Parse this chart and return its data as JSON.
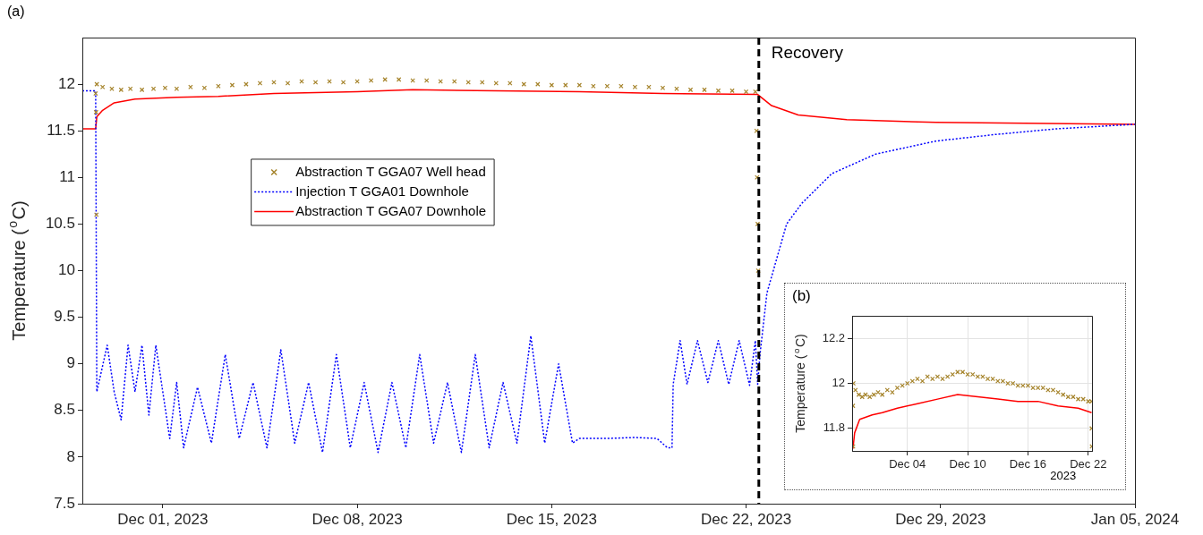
{
  "chart_data": [
    {
      "type": "line",
      "ylabel": "Temperature ($^{o}$C)",
      "legend": "top left",
      "grid": false,
      "marker": "none",
      "xlim": [
        "2023-11-28T02:30",
        "2024-01-05T00:00"
      ],
      "xticks": [
        {
          "value": "2023-12-01",
          "label": "Dec 01, 2023"
        },
        {
          "value": "2023-12-08",
          "label": "Dec 08, 2023"
        },
        {
          "value": "2023-12-15",
          "label": "Dec 15, 2023"
        },
        {
          "value": "2023-12-22",
          "label": "Dec 22, 2023"
        },
        {
          "value": "2023-12-29",
          "label": "Dec 29, 2023"
        },
        {
          "value": "2024-01-05",
          "label": "Jan 05, 2024"
        }
      ],
      "ylim": [
        7.5,
        12.5
      ],
      "yticks": [
        7.5,
        8,
        8.5,
        9,
        9.5,
        10,
        10.5,
        11,
        11.5,
        12
      ],
      "ref_lines": [
        {
          "axis": "x",
          "value": "2023-12-22T11:00",
          "label": "Recovery",
          "color": "#000000",
          "line_style": "dashed"
        }
      ],
      "annotations": [
        "(a)"
      ],
      "series": [
        {
          "name": "Abstraction T GGA07 Well head",
          "type": "scatter",
          "marker": "cross",
          "color": "#a5832a",
          "x": [
            "2023-11-28T14:00",
            "2023-11-28T14:20",
            "2023-11-28T14:40",
            "2023-11-28T15:00",
            "2023-11-28T20:00",
            "2023-11-29T04:00",
            "2023-11-29T12:00",
            "2023-11-29T20:00",
            "2023-11-30T06:00",
            "2023-11-30T16:00",
            "2023-12-01T02:00",
            "2023-12-01T12:00",
            "2023-12-02T00:00",
            "2023-12-02T12:00",
            "2023-12-03T00:00",
            "2023-12-03T12:00",
            "2023-12-04T00:00",
            "2023-12-04T12:00",
            "2023-12-05T00:00",
            "2023-12-05T12:00",
            "2023-12-06T00:00",
            "2023-12-06T12:00",
            "2023-12-07T00:00",
            "2023-12-07T12:00",
            "2023-12-08T00:00",
            "2023-12-08T12:00",
            "2023-12-09T00:00",
            "2023-12-09T12:00",
            "2023-12-10T00:00",
            "2023-12-10T12:00",
            "2023-12-11T00:00",
            "2023-12-11T12:00",
            "2023-12-12T00:00",
            "2023-12-12T12:00",
            "2023-12-13T00:00",
            "2023-12-13T12:00",
            "2023-12-14T00:00",
            "2023-12-14T12:00",
            "2023-12-15T00:00",
            "2023-12-15T12:00",
            "2023-12-16T00:00",
            "2023-12-16T12:00",
            "2023-12-17T00:00",
            "2023-12-17T12:00",
            "2023-12-18T00:00",
            "2023-12-18T12:00",
            "2023-12-19T00:00",
            "2023-12-19T12:00",
            "2023-12-20T00:00",
            "2023-12-20T12:00",
            "2023-12-21T00:00",
            "2023-12-21T12:00",
            "2023-12-22T00:00",
            "2023-12-22T08:00",
            "2023-12-22T09:00",
            "2023-12-22T09:30",
            "2023-12-22T10:00",
            "2023-12-22T10:30"
          ],
          "values": [
            11.9,
            11.7,
            10.6,
            12.0,
            11.97,
            11.95,
            11.94,
            11.95,
            11.94,
            11.95,
            11.96,
            11.95,
            11.97,
            11.96,
            11.98,
            11.99,
            12.0,
            12.01,
            12.02,
            12.01,
            12.03,
            12.02,
            12.03,
            12.02,
            12.03,
            12.04,
            12.05,
            12.05,
            12.04,
            12.04,
            12.03,
            12.03,
            12.02,
            12.02,
            12.01,
            12.01,
            12.0,
            12.0,
            11.99,
            11.99,
            11.99,
            11.98,
            11.98,
            11.98,
            11.97,
            11.97,
            11.96,
            11.95,
            11.94,
            11.94,
            11.93,
            11.93,
            11.92,
            11.92,
            11.5,
            11.0,
            10.5,
            10.0
          ]
        },
        {
          "name": "Injection T GGA01 Downhole",
          "type": "line",
          "line_style": "dotted",
          "color": "#0000ff",
          "x": [
            "2023-11-28T02:30",
            "2023-11-28T14:00",
            "2023-11-28T15:00",
            "2023-11-29T00:00",
            "2023-11-29T06:00",
            "2023-11-29T12:00",
            "2023-11-29T18:00",
            "2023-11-30T00:00",
            "2023-11-30T06:00",
            "2023-11-30T12:00",
            "2023-11-30T18:00",
            "2023-12-01T00:00",
            "2023-12-01T06:00",
            "2023-12-01T12:00",
            "2023-12-01T18:00",
            "2023-12-02T06:00",
            "2023-12-02T18:00",
            "2023-12-03T06:00",
            "2023-12-03T18:00",
            "2023-12-04T06:00",
            "2023-12-04T18:00",
            "2023-12-05T06:00",
            "2023-12-05T18:00",
            "2023-12-06T06:00",
            "2023-12-06T18:00",
            "2023-12-07T06:00",
            "2023-12-07T18:00",
            "2023-12-08T06:00",
            "2023-12-08T18:00",
            "2023-12-09T06:00",
            "2023-12-09T18:00",
            "2023-12-10T06:00",
            "2023-12-10T18:00",
            "2023-12-11T06:00",
            "2023-12-11T18:00",
            "2023-12-12T06:00",
            "2023-12-12T18:00",
            "2023-12-13T06:00",
            "2023-12-13T18:00",
            "2023-12-14T06:00",
            "2023-12-14T18:00",
            "2023-12-15T06:00",
            "2023-12-15T18:00",
            "2023-12-16T00:00",
            "2023-12-17T00:00",
            "2023-12-18T00:00",
            "2023-12-18T19:00",
            "2023-12-19T04:00",
            "2023-12-19T08:00",
            "2023-12-19T09:00",
            "2023-12-19T15:00",
            "2023-12-19T21:00",
            "2023-12-20T06:00",
            "2023-12-20T15:00",
            "2023-12-21T00:00",
            "2023-12-21T09:00",
            "2023-12-21T18:00",
            "2023-12-22T03:00",
            "2023-12-22T08:00",
            "2023-12-22T10:00",
            "2023-12-22T12:00",
            "2023-12-22T18:00",
            "2023-12-23T11:00",
            "2023-12-24T00:00",
            "2023-12-25T02:00",
            "2023-12-26T16:00",
            "2023-12-28T20:00",
            "2023-12-30T23:00",
            "2024-01-02T03:00",
            "2024-01-05T00:00"
          ],
          "values": [
            11.93,
            11.93,
            8.7,
            9.2,
            8.7,
            8.4,
            9.2,
            8.7,
            9.2,
            8.45,
            9.2,
            8.7,
            8.2,
            8.8,
            8.1,
            8.75,
            8.15,
            9.1,
            8.2,
            8.8,
            8.1,
            9.15,
            8.15,
            8.8,
            8.05,
            9.1,
            8.1,
            8.8,
            8.05,
            8.8,
            8.1,
            9.1,
            8.15,
            8.8,
            8.05,
            9.1,
            8.1,
            8.8,
            8.15,
            9.3,
            8.15,
            9.0,
            8.15,
            8.2,
            8.2,
            8.21,
            8.2,
            8.1,
            8.1,
            8.78,
            9.25,
            8.78,
            9.25,
            8.8,
            9.25,
            8.78,
            9.25,
            8.77,
            9.25,
            8.78,
            9.1,
            9.76,
            10.5,
            10.72,
            11.04,
            11.25,
            11.39,
            11.46,
            11.52,
            11.57
          ]
        },
        {
          "name": "Abstraction T GGA07 Downhole",
          "type": "line",
          "line_style": "solid",
          "color": "#ff0000",
          "x": [
            "2023-11-28T02:30",
            "2023-11-28T14:00",
            "2023-11-28T15:00",
            "2023-11-28T20:00",
            "2023-11-29T06:00",
            "2023-11-30T00:00",
            "2023-12-01T12:00",
            "2023-12-03T00:00",
            "2023-12-05T00:00",
            "2023-12-08T00:00",
            "2023-12-10T00:00",
            "2023-12-13T00:00",
            "2023-12-16T00:00",
            "2023-12-19T00:00",
            "2023-12-22T10:00",
            "2023-12-22T22:00",
            "2023-12-23T21:00",
            "2023-12-25T15:00",
            "2023-12-28T20:00",
            "2024-01-05T00:00"
          ],
          "values": [
            11.52,
            11.52,
            11.65,
            11.72,
            11.8,
            11.84,
            11.86,
            11.87,
            11.9,
            11.92,
            11.94,
            11.93,
            11.92,
            11.9,
            11.89,
            11.77,
            11.67,
            11.62,
            11.59,
            11.57
          ]
        }
      ]
    },
    {
      "type": "line",
      "ylabel": "Temperature ($^{o}$C)",
      "grid": true,
      "marker": "none",
      "xlim": [
        "2023-11-28T12:00",
        "2023-12-22T09:00"
      ],
      "xticks": [
        {
          "value": "2023-12-04",
          "label": "Dec 04"
        },
        {
          "value": "2023-12-10",
          "label": "Dec 10"
        },
        {
          "value": "2023-12-16",
          "label": "Dec 16"
        },
        {
          "value": "2023-12-22",
          "label": "Dec 22"
        }
      ],
      "ylim": [
        11.7,
        12.3
      ],
      "yticks": [
        11.8,
        12,
        12.2
      ],
      "annotations": [
        "(b)",
        "2023"
      ],
      "series": [
        {
          "type": "scatter",
          "marker": "cross",
          "color": "#a5832a",
          "x": [
            "2023-11-28T14:00",
            "2023-11-28T14:20",
            "2023-11-28T15:00",
            "2023-11-28T20:00",
            "2023-11-29T04:00",
            "2023-11-29T12:00",
            "2023-11-29T20:00",
            "2023-11-30T06:00",
            "2023-11-30T16:00",
            "2023-12-01T02:00",
            "2023-12-01T12:00",
            "2023-12-02T00:00",
            "2023-12-02T12:00",
            "2023-12-03T00:00",
            "2023-12-03T12:00",
            "2023-12-04T00:00",
            "2023-12-04T12:00",
            "2023-12-05T00:00",
            "2023-12-05T12:00",
            "2023-12-06T00:00",
            "2023-12-06T12:00",
            "2023-12-07T00:00",
            "2023-12-07T12:00",
            "2023-12-08T00:00",
            "2023-12-08T12:00",
            "2023-12-09T00:00",
            "2023-12-09T12:00",
            "2023-12-10T00:00",
            "2023-12-10T12:00",
            "2023-12-11T00:00",
            "2023-12-11T12:00",
            "2023-12-12T00:00",
            "2023-12-12T12:00",
            "2023-12-13T00:00",
            "2023-12-13T12:00",
            "2023-12-14T00:00",
            "2023-12-14T12:00",
            "2023-12-15T00:00",
            "2023-12-15T12:00",
            "2023-12-16T00:00",
            "2023-12-16T12:00",
            "2023-12-17T00:00",
            "2023-12-17T12:00",
            "2023-12-18T00:00",
            "2023-12-18T12:00",
            "2023-12-19T00:00",
            "2023-12-19T12:00",
            "2023-12-20T00:00",
            "2023-12-20T12:00",
            "2023-12-21T00:00",
            "2023-12-21T12:00",
            "2023-12-22T00:00",
            "2023-12-22T08:00",
            "2023-12-22T08:20",
            "2023-12-22T08:40"
          ],
          "values": [
            11.9,
            11.72,
            12.0,
            11.97,
            11.95,
            11.94,
            11.95,
            11.94,
            11.95,
            11.96,
            11.95,
            11.97,
            11.96,
            11.98,
            11.99,
            12.0,
            12.01,
            12.02,
            12.01,
            12.03,
            12.02,
            12.03,
            12.02,
            12.03,
            12.04,
            12.05,
            12.05,
            12.04,
            12.04,
            12.03,
            12.03,
            12.02,
            12.02,
            12.01,
            12.01,
            12.0,
            12.0,
            11.99,
            11.99,
            11.99,
            11.98,
            11.98,
            11.98,
            11.97,
            11.97,
            11.96,
            11.95,
            11.94,
            11.94,
            11.93,
            11.93,
            11.92,
            11.92,
            11.8,
            11.72
          ]
        },
        {
          "type": "line",
          "line_style": "solid",
          "color": "#ff0000",
          "x": [
            "2023-11-28T14:00",
            "2023-11-28T18:00",
            "2023-11-29T06:00",
            "2023-11-30T12:00",
            "2023-12-01T12:00",
            "2023-12-03T00:00",
            "2023-12-05T00:00",
            "2023-12-07T00:00",
            "2023-12-09T00:00",
            "2023-12-11T00:00",
            "2023-12-13T00:00",
            "2023-12-15T00:00",
            "2023-12-17T00:00",
            "2023-12-19T00:00",
            "2023-12-21T00:00",
            "2023-12-22T08:00"
          ],
          "values": [
            11.71,
            11.78,
            11.84,
            11.86,
            11.87,
            11.89,
            11.91,
            11.93,
            11.95,
            11.94,
            11.93,
            11.92,
            11.92,
            11.9,
            11.89,
            11.87
          ]
        }
      ]
    }
  ]
}
